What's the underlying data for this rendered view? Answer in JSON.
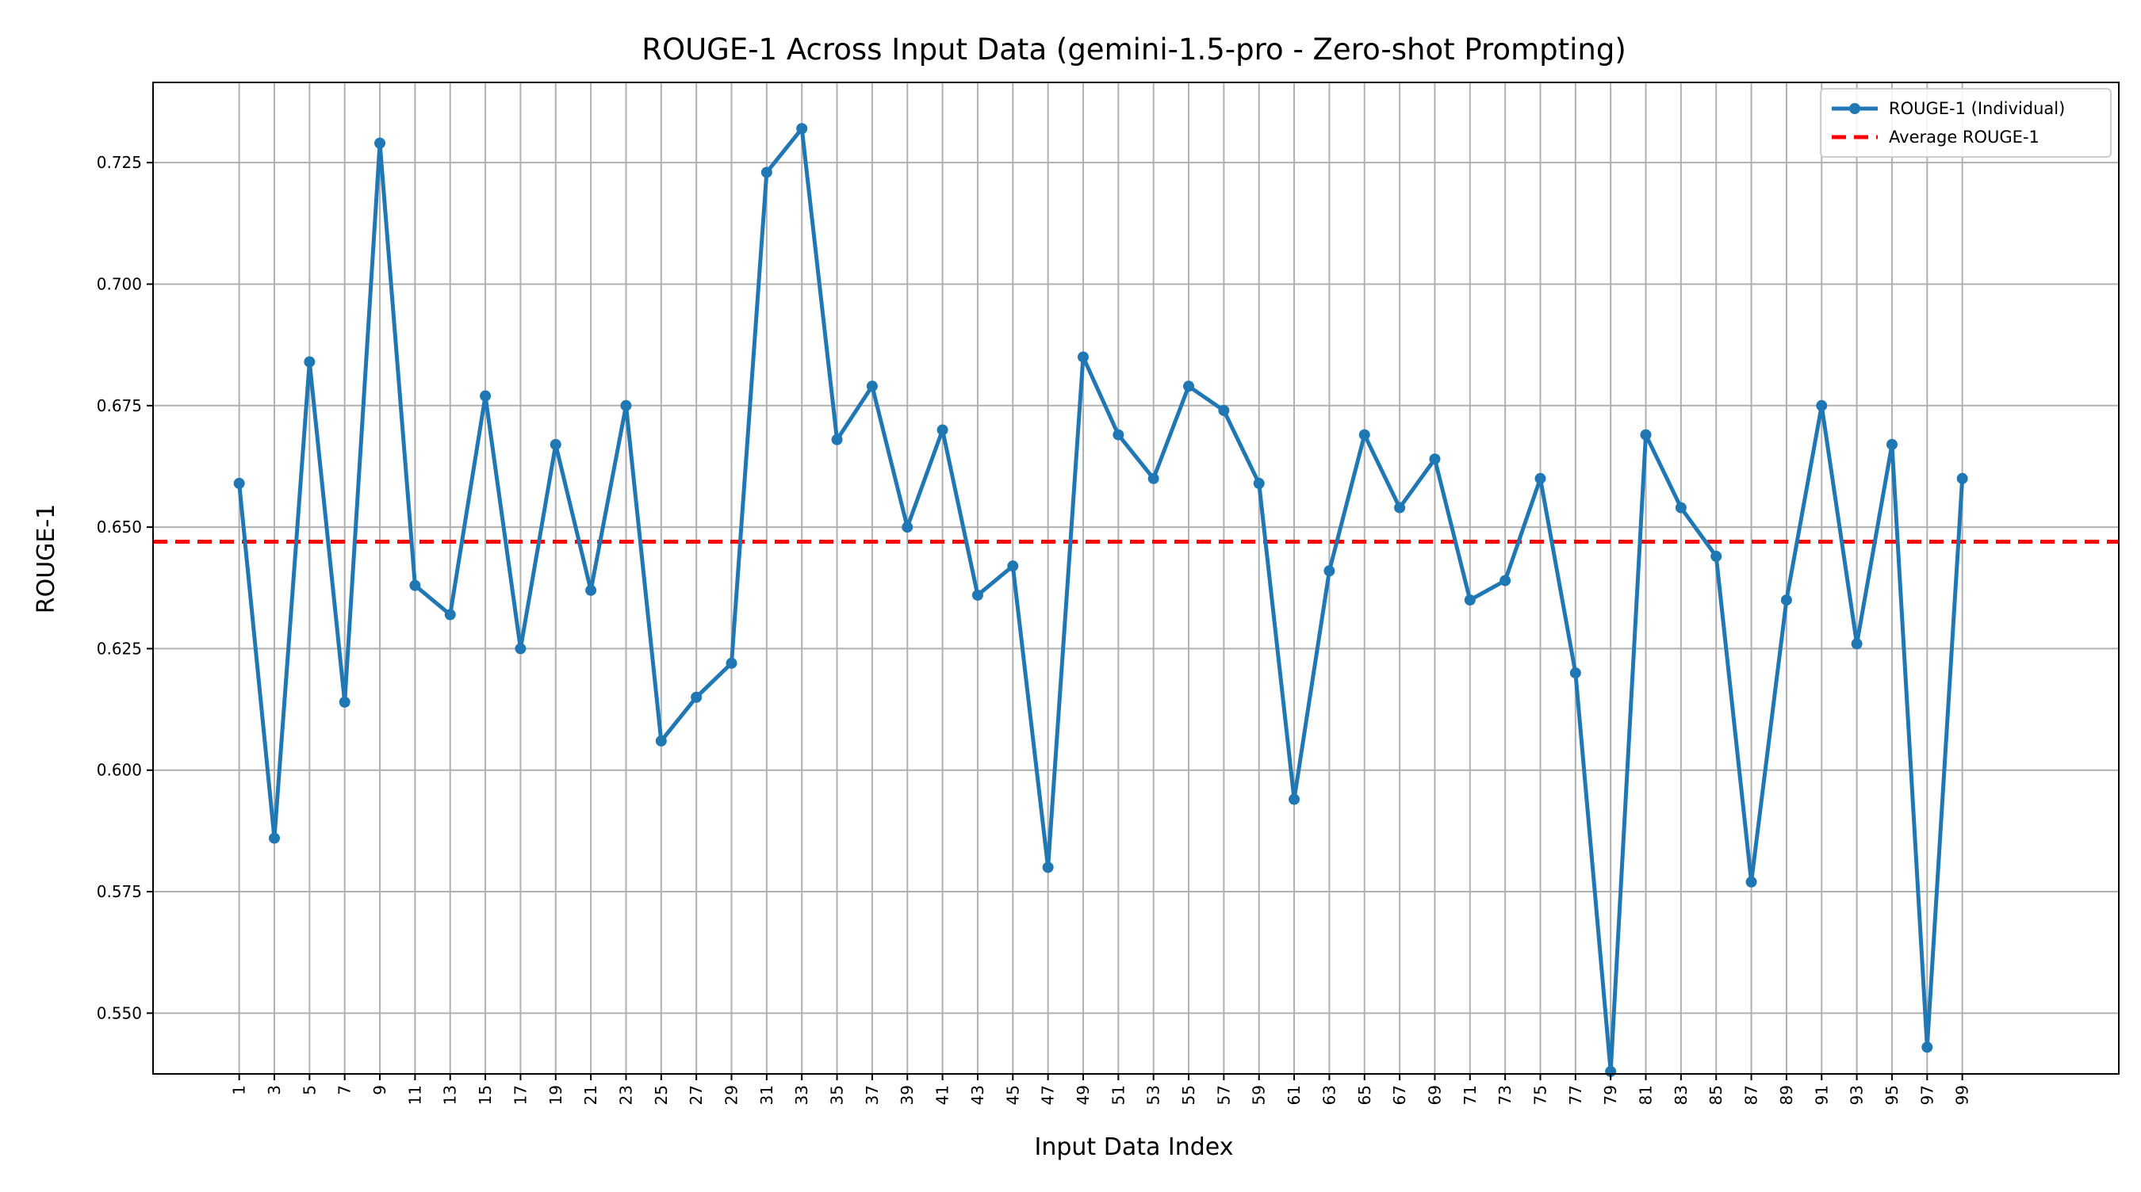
{
  "chart_data": {
    "type": "line",
    "title": "ROUGE-1 Across Input Data (gemini-1.5-pro - Zero-shot Prompting)",
    "xlabel": "Input Data Index",
    "ylabel": "ROUGE-1",
    "ylim": [
      0.5375,
      0.7415
    ],
    "y_ticks": [
      0.55,
      0.575,
      0.6,
      0.625,
      0.65,
      0.675,
      0.7,
      0.725
    ],
    "y_tick_labels": [
      "0.550",
      "0.575",
      "0.600",
      "0.625",
      "0.650",
      "0.675",
      "0.700",
      "0.725"
    ],
    "x_ticks": [
      1,
      3,
      5,
      7,
      9,
      11,
      13,
      15,
      17,
      19,
      21,
      23,
      25,
      27,
      29,
      31,
      33,
      35,
      37,
      39,
      41,
      43,
      45,
      47,
      49,
      51,
      53,
      55,
      57,
      59,
      61,
      63,
      65,
      67,
      69,
      71,
      73,
      75,
      77,
      79,
      81,
      83,
      85,
      87,
      89,
      91,
      93,
      95,
      97,
      99
    ],
    "grid": true,
    "legend_position": "top-right",
    "series": [
      {
        "name": "ROUGE-1 (Individual)",
        "color": "#1f77b4",
        "style": "line-with-markers",
        "x": [
          1,
          3,
          5,
          7,
          9,
          11,
          13,
          15,
          17,
          19,
          21,
          23,
          25,
          27,
          29,
          31,
          33,
          35,
          37,
          39,
          41,
          43,
          45,
          47,
          49,
          51,
          53,
          55,
          57,
          59,
          61,
          63,
          65,
          67,
          69,
          71,
          73,
          75,
          77,
          79,
          81,
          83,
          85,
          87,
          89,
          91,
          93,
          95,
          97,
          99
        ],
        "y": [
          0.659,
          0.586,
          0.684,
          0.614,
          0.729,
          0.638,
          0.632,
          0.677,
          0.625,
          0.667,
          0.637,
          0.675,
          0.606,
          0.615,
          0.622,
          0.723,
          0.732,
          0.668,
          0.679,
          0.65,
          0.67,
          0.636,
          0.642,
          0.58,
          0.685,
          0.669,
          0.66,
          0.679,
          0.674,
          0.659,
          0.594,
          0.641,
          0.669,
          0.654,
          0.664,
          0.635,
          0.639,
          0.66,
          0.62,
          0.538,
          0.669,
          0.654,
          0.644,
          0.577,
          0.635,
          0.675,
          0.626,
          0.667,
          0.543,
          0.66
        ]
      },
      {
        "name": "Average ROUGE-1",
        "color": "#ff0000",
        "style": "dashed-horizontal",
        "value": 0.647
      }
    ]
  }
}
